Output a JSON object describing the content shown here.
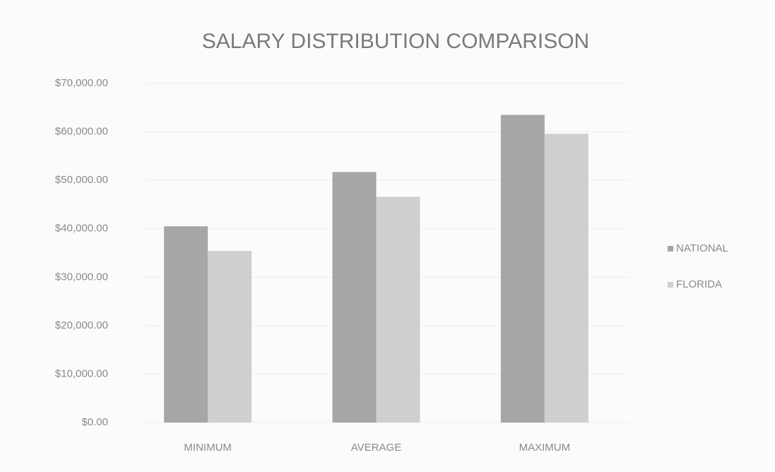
{
  "chart_data": {
    "type": "bar",
    "title": "SALARY DISTRIBUTION COMPARISON",
    "categories": [
      "MINIMUM",
      "AVERAGE",
      "MAXIMUM"
    ],
    "series": [
      {
        "name": "NATIONAL",
        "color": "#a6a6a6",
        "values": [
          40500,
          51700,
          63500
        ]
      },
      {
        "name": "FLORIDA",
        "color": "#cfcfcf",
        "values": [
          35400,
          46600,
          59600
        ]
      }
    ],
    "ylim": [
      0,
      70000
    ],
    "yticks": [
      {
        "value": 0,
        "label": "$0.00"
      },
      {
        "value": 10000,
        "label": "$10,000.00"
      },
      {
        "value": 20000,
        "label": "$20,000.00"
      },
      {
        "value": 30000,
        "label": "$30,000.00"
      },
      {
        "value": 40000,
        "label": "$40,000.00"
      },
      {
        "value": 50000,
        "label": "$50,000.00"
      },
      {
        "value": 60000,
        "label": "$60,000.00"
      },
      {
        "value": 70000,
        "label": "$70,000.00"
      }
    ],
    "grid": true,
    "legend": "right"
  }
}
